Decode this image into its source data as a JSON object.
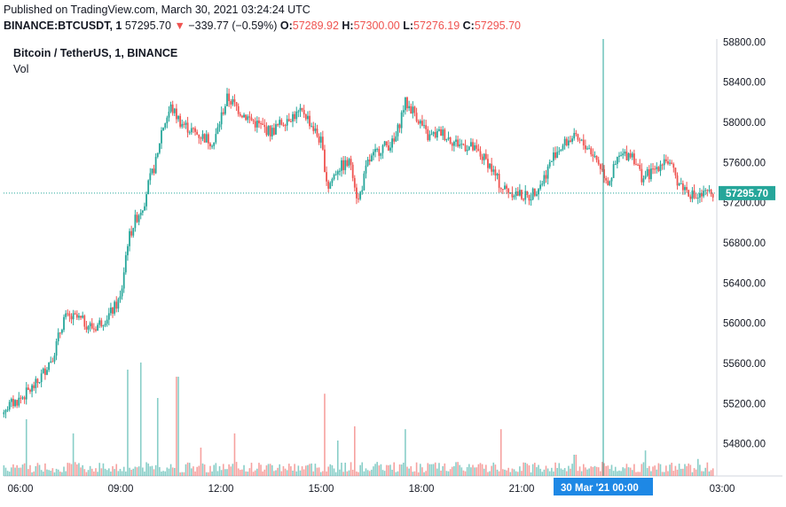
{
  "header": {
    "published": "Published on TradingView.com, March 30, 2021 03:24:24 UTC",
    "symbol": "BINANCE:BTCUSDT, 1",
    "last": "57295.70",
    "change": "−339.77 (−0.59%)",
    "o_label": "O:",
    "o_value": "57289.92",
    "h_label": "H:",
    "h_value": "57300.00",
    "l_label": "L:",
    "l_value": "57276.19",
    "c_label": "C:",
    "c_value": "57295.70"
  },
  "legend": {
    "title": "Bitcoin / TetherUS, 1, BINANCE",
    "volume": "Vol"
  },
  "colors": {
    "up": "#26a69a",
    "down": "#ef5350",
    "crosshair": "#26a69a",
    "price_line": "#26a69a",
    "axis_text": "#131722",
    "time_badge_bg": "#1e88e5"
  },
  "chart_data": {
    "type": "candlestick",
    "title": "Bitcoin / TetherUS, 1, BINANCE",
    "y_ticks": [
      "54800.00",
      "55200.00",
      "55600.00",
      "56000.00",
      "56400.00",
      "56800.00",
      "57200.00",
      "57600.00",
      "58000.00",
      "58400.00",
      "58800.00"
    ],
    "x_ticks": [
      "06:00",
      "09:00",
      "12:00",
      "15:00",
      "18:00",
      "21:00",
      "03:00"
    ],
    "ylim": [
      54480,
      58830
    ],
    "last_price_label": "57295.70",
    "crosshair_time_label": "30 Mar '21   00:00",
    "price_path": [
      [
        5.0,
        55050
      ],
      [
        5.5,
        55150
      ],
      [
        6.0,
        55250
      ],
      [
        6.5,
        55400
      ],
      [
        7.0,
        55700
      ],
      [
        7.3,
        56050
      ],
      [
        7.7,
        56050
      ],
      [
        8.2,
        55950
      ],
      [
        8.7,
        56100
      ],
      [
        9.0,
        56250
      ],
      [
        9.2,
        56800
      ],
      [
        9.4,
        57000
      ],
      [
        9.7,
        57200
      ],
      [
        9.8,
        57350
      ],
      [
        10.1,
        57650
      ],
      [
        10.2,
        57900
      ],
      [
        10.5,
        58150
      ],
      [
        10.8,
        58000
      ],
      [
        11.2,
        57900
      ],
      [
        11.5,
        57850
      ],
      [
        11.8,
        57800
      ],
      [
        12.0,
        58050
      ],
      [
        12.2,
        58250
      ],
      [
        12.6,
        58100
      ],
      [
        13.0,
        58000
      ],
      [
        13.5,
        57900
      ],
      [
        14.0,
        58050
      ],
      [
        14.5,
        58100
      ],
      [
        15.0,
        57800
      ],
      [
        15.2,
        57350
      ],
      [
        15.5,
        57550
      ],
      [
        15.9,
        57600
      ],
      [
        16.1,
        57200
      ],
      [
        16.4,
        57600
      ],
      [
        16.8,
        57750
      ],
      [
        17.2,
        57800
      ],
      [
        17.5,
        58200
      ],
      [
        17.8,
        58100
      ],
      [
        18.2,
        57850
      ],
      [
        18.6,
        57900
      ],
      [
        19.0,
        57800
      ],
      [
        19.5,
        57750
      ],
      [
        20.0,
        57600
      ],
      [
        20.4,
        57350
      ],
      [
        20.8,
        57300
      ],
      [
        21.2,
        57250
      ],
      [
        21.6,
        57400
      ],
      [
        22.0,
        57700
      ],
      [
        22.5,
        57850
      ],
      [
        23.0,
        57750
      ],
      [
        23.3,
        57600
      ],
      [
        23.6,
        57400
      ],
      [
        23.9,
        57650
      ],
      [
        24.3,
        57700
      ],
      [
        24.6,
        57450
      ],
      [
        24.9,
        57500
      ],
      [
        25.3,
        57650
      ],
      [
        25.7,
        57400
      ],
      [
        26.2,
        57250
      ],
      [
        26.7,
        57300
      ],
      [
        27.1,
        57350
      ],
      [
        27.4,
        57296
      ]
    ],
    "volume_spikes": [
      [
        6.2,
        0.4
      ],
      [
        7.6,
        0.3
      ],
      [
        9.2,
        0.75
      ],
      [
        9.6,
        0.8
      ],
      [
        10.1,
        0.55
      ],
      [
        10.7,
        0.7
      ],
      [
        11.4,
        0.2
      ],
      [
        12.4,
        0.3
      ],
      [
        15.1,
        0.58
      ],
      [
        15.5,
        0.25
      ],
      [
        16.0,
        0.35
      ],
      [
        17.5,
        0.33
      ],
      [
        20.4,
        0.33
      ],
      [
        22.6,
        0.15
      ],
      [
        24.7,
        0.18
      ],
      [
        26.3,
        0.12
      ]
    ],
    "crosshair_x_time": 24.0
  }
}
